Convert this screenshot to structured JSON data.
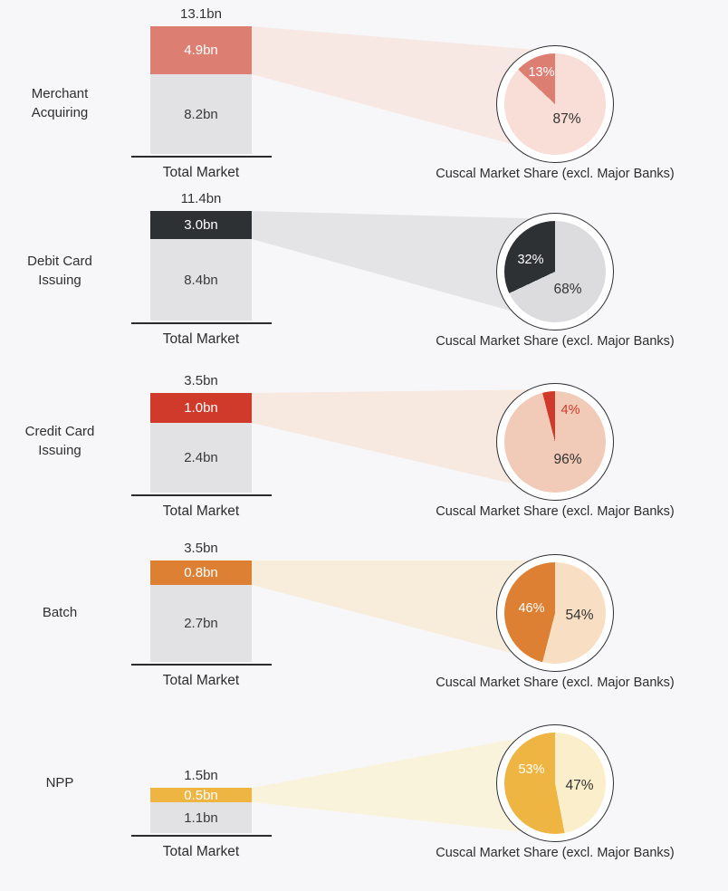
{
  "chart_data": {
    "type": "bar",
    "subtype": "stacked-bar-with-pie-share-rows",
    "caption_per_row": "Cuscal Market Share (excl. Major Banks)",
    "bar_axis_label": "Total Market",
    "unit": "bn",
    "colors": {
      "background": "#f7f7f9",
      "other_segment": "#e2e2e4",
      "text": "#303030",
      "axis": "#2b2b2b",
      "pie_outline": "#2c3033",
      "pie_ring": "#ffffff"
    },
    "rows": [
      {
        "category": "Merchant\nAcquiring",
        "total_label": "13.1bn",
        "total_value": 13.1,
        "cuscal_label": "4.9bn",
        "cuscal_value": 4.9,
        "other_label": "8.2bn",
        "other_value": 8.2,
        "share_pct": "13%",
        "share_value": 13,
        "remainder_pct": "87%",
        "remainder_value": 87,
        "share_label_color": "#ffffff",
        "colors": {
          "main": "#dd7e72",
          "pie_light": "#f8ded6",
          "beam": "#f8e8e4"
        }
      },
      {
        "category": "Debit Card\nIssuing",
        "total_label": "11.4bn",
        "total_value": 11.4,
        "cuscal_label": "3.0bn",
        "cuscal_value": 3.0,
        "other_label": "8.4bn",
        "other_value": 8.4,
        "share_pct": "32%",
        "share_value": 32,
        "remainder_pct": "68%",
        "remainder_value": 68,
        "share_label_color": "#ffffff",
        "colors": {
          "main": "#2e3133",
          "pie_light": "#dcdcde",
          "beam": "#e4e4e6"
        }
      },
      {
        "category": "Credit Card\nIssuing",
        "total_label": "3.5bn",
        "total_value": 3.5,
        "cuscal_label": "1.0bn",
        "cuscal_value": 1.0,
        "other_label": "2.4bn",
        "other_value": 2.4,
        "share_pct": "4%",
        "share_value": 4,
        "remainder_pct": "96%",
        "remainder_value": 96,
        "share_label_color": "#cf3a2a",
        "colors": {
          "main": "#cf3a2a",
          "pie_light": "#f2cab8",
          "beam": "#f7e8e0"
        }
      },
      {
        "category": "Batch",
        "total_label": "3.5bn",
        "total_value": 3.5,
        "cuscal_label": "0.8bn",
        "cuscal_value": 0.8,
        "other_label": "2.7bn",
        "other_value": 2.7,
        "share_pct": "46%",
        "share_value": 46,
        "remainder_pct": "54%",
        "remainder_value": 54,
        "share_label_color": "#ffffff",
        "colors": {
          "main": "#dd8033",
          "pie_light": "#f8dfc3",
          "beam": "#f8ecdb"
        }
      },
      {
        "category": "NPP",
        "total_label": "1.5bn",
        "total_value": 1.5,
        "cuscal_label": "0.5bn",
        "cuscal_value": 0.5,
        "other_label": "1.1bn",
        "other_value": 1.1,
        "share_pct": "53%",
        "share_value": 53,
        "remainder_pct": "47%",
        "remainder_value": 47,
        "share_label_color": "#ffffff",
        "colors": {
          "main": "#efb542",
          "pie_light": "#fbeecb",
          "beam": "#faf3dc"
        }
      }
    ]
  }
}
